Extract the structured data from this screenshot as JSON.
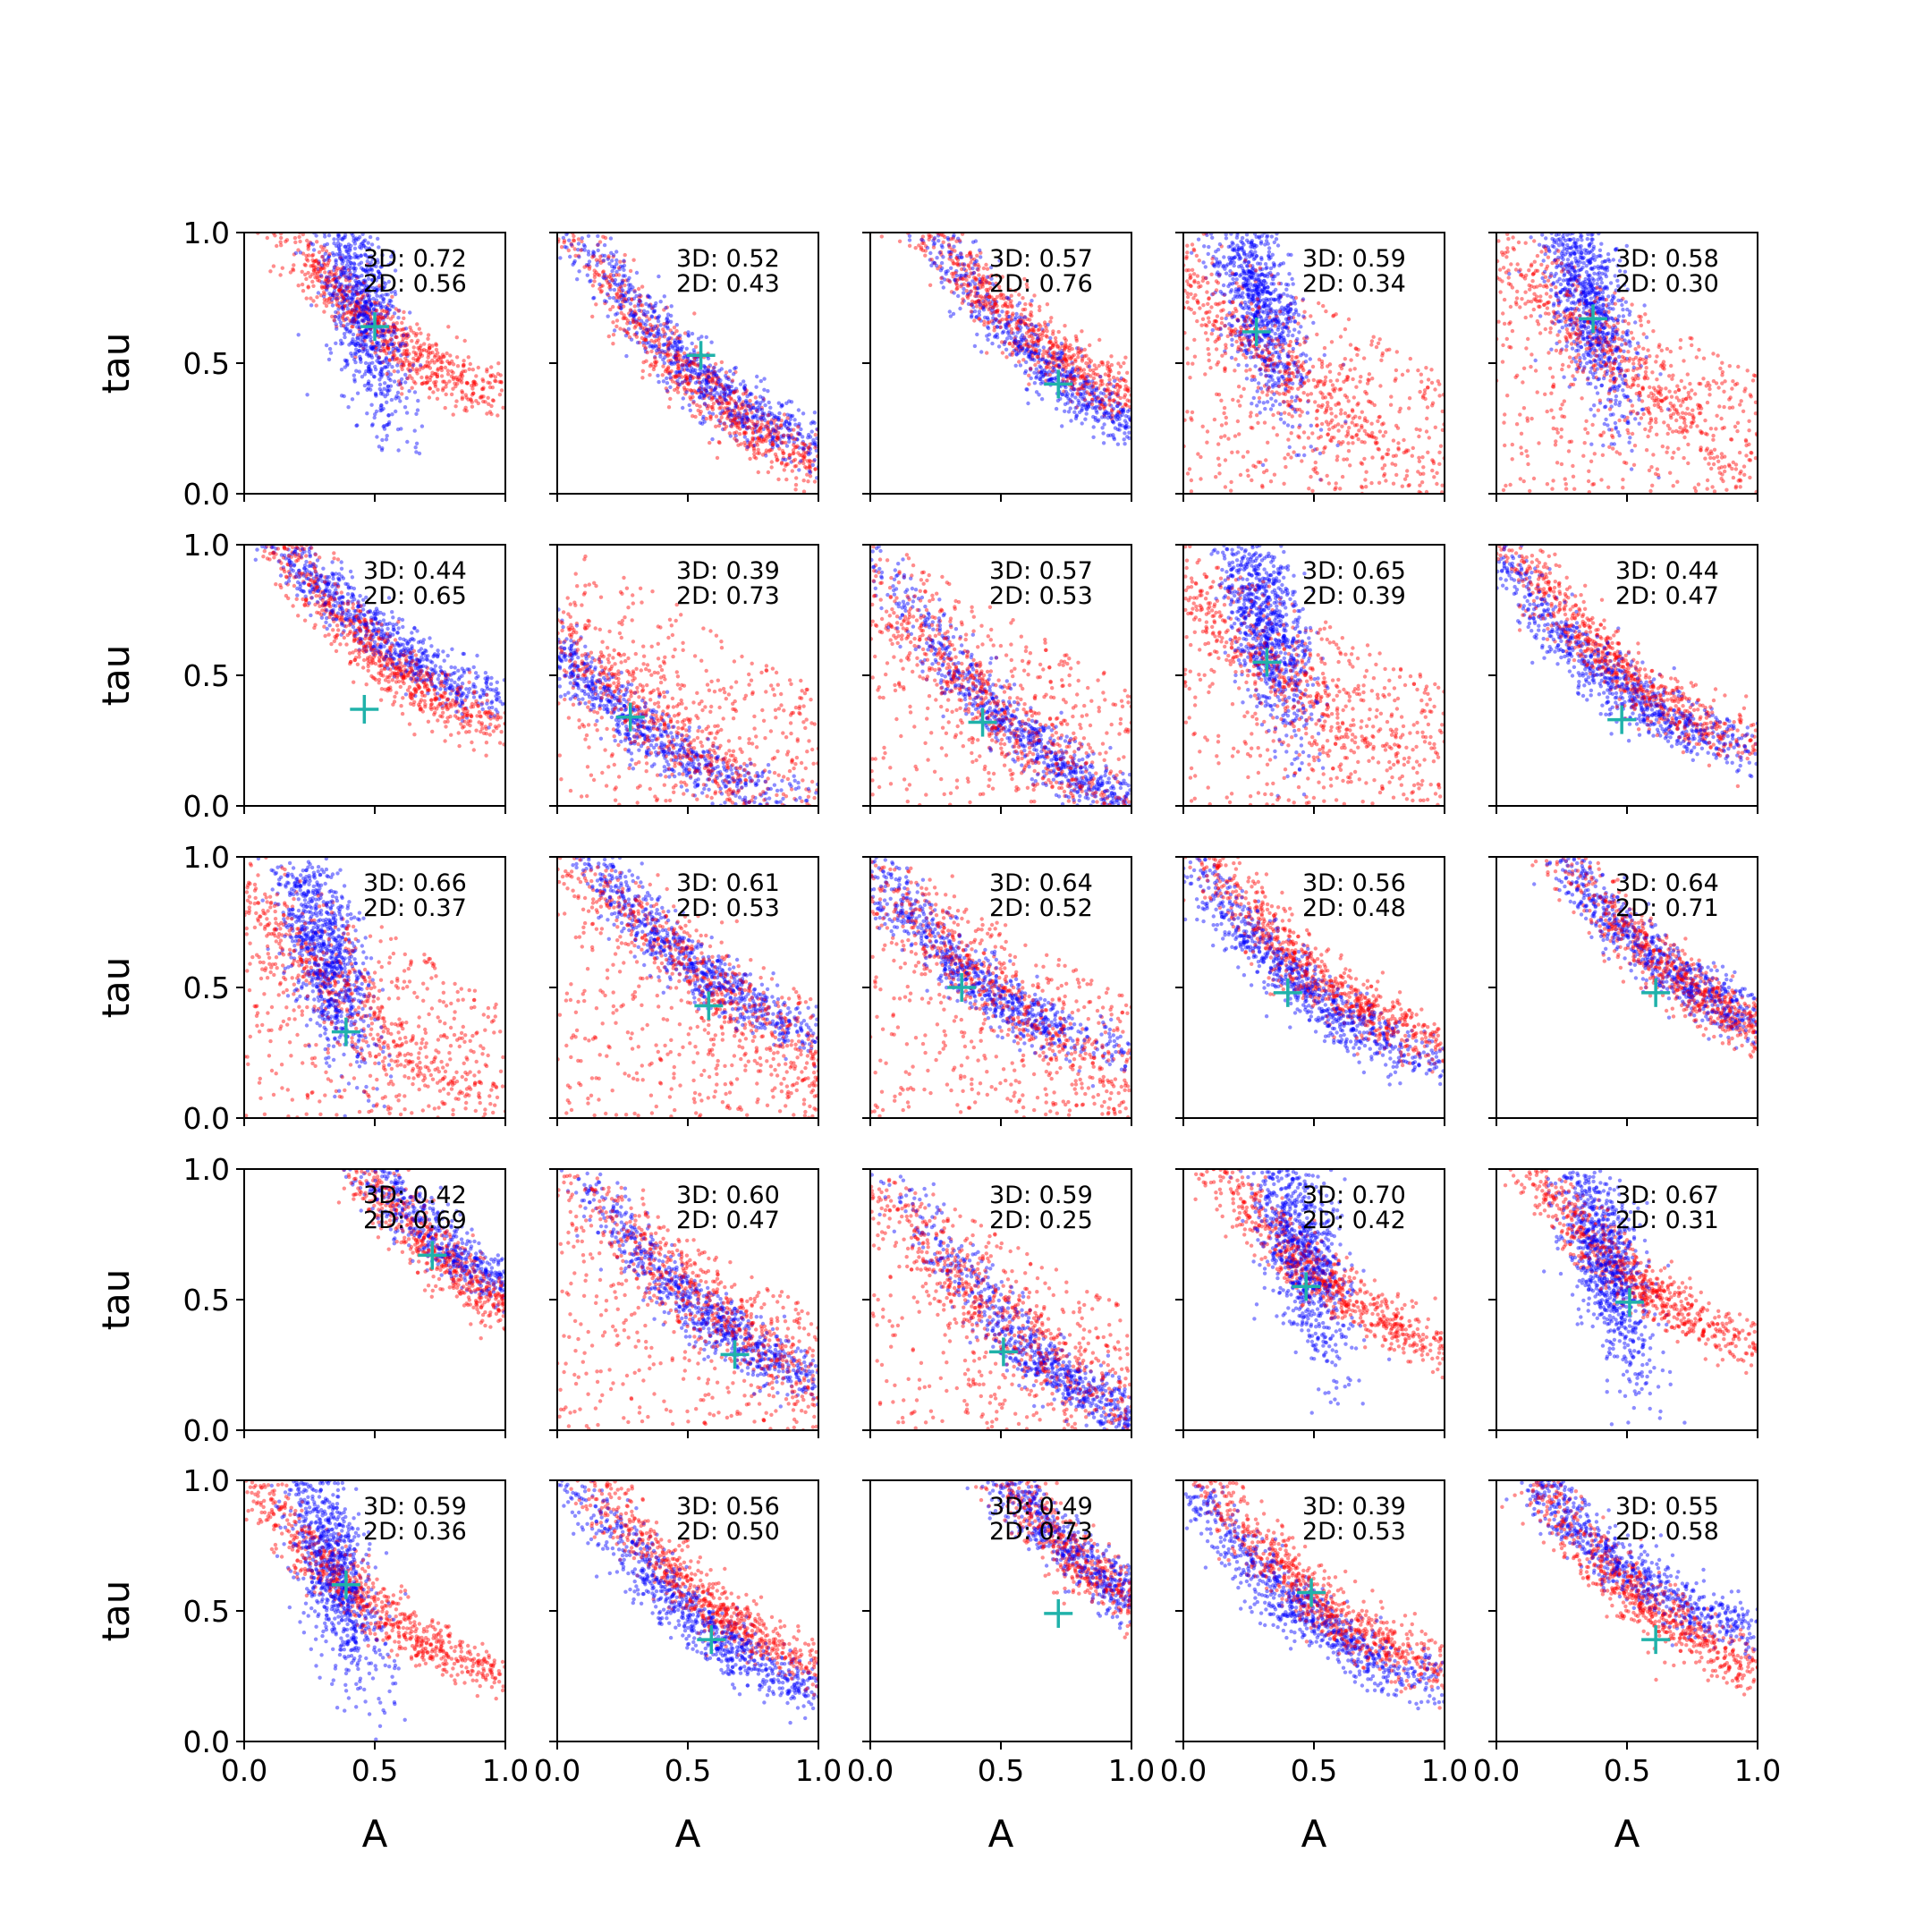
{
  "chart_data": {
    "type": "scatter",
    "layout": {
      "rows": 5,
      "cols": 5
    },
    "xlabel": "A",
    "ylabel": "tau",
    "xlim": [
      0,
      1
    ],
    "ylim": [
      0,
      1
    ],
    "xticks": [
      "0.0",
      "0.5",
      "1.0"
    ],
    "yticks": [
      "0.0",
      "0.5",
      "1.0"
    ],
    "colors": {
      "series_a": "#0000ff",
      "series_b": "#ff0000",
      "marker": "#20b2aa"
    },
    "panels": [
      {
        "label_3d": "3D: 0.72",
        "label_2d": "2D: 0.56",
        "marker": [
          0.5,
          0.64
        ],
        "blue": {
          "center": [
            0.45,
            0.72
          ],
          "shape": "vertical"
        },
        "red": {
          "center": [
            0.5,
            0.65
          ],
          "shape": "curve"
        }
      },
      {
        "label_3d": "3D: 0.52",
        "label_2d": "2D: 0.43",
        "marker": [
          0.55,
          0.53
        ],
        "blue": {
          "center": [
            0.55,
            0.45
          ],
          "shape": "curve"
        },
        "red": {
          "center": [
            0.62,
            0.35
          ],
          "shape": "curve"
        }
      },
      {
        "label_3d": "3D: 0.57",
        "label_2d": "2D: 0.76",
        "marker": [
          0.72,
          0.42
        ],
        "blue": {
          "center": [
            0.72,
            0.45
          ],
          "shape": "curve"
        },
        "red": {
          "center": [
            0.62,
            0.6
          ],
          "shape": "curve"
        }
      },
      {
        "label_3d": "3D: 0.59",
        "label_2d": "2D: 0.34",
        "marker": [
          0.28,
          0.62
        ],
        "blue": {
          "center": [
            0.28,
            0.75
          ],
          "shape": "vertical"
        },
        "red": {
          "center": [
            0.3,
            0.55
          ],
          "shape": "diffuse"
        }
      },
      {
        "label_3d": "3D: 0.58",
        "label_2d": "2D: 0.30",
        "marker": [
          0.37,
          0.67
        ],
        "blue": {
          "center": [
            0.35,
            0.75
          ],
          "shape": "vertical"
        },
        "red": {
          "center": [
            0.38,
            0.6
          ],
          "shape": "diffuse"
        }
      },
      {
        "label_3d": "3D: 0.44",
        "label_2d": "2D: 0.65",
        "marker": [
          0.46,
          0.37
        ],
        "blue": {
          "center": [
            0.45,
            0.7
          ],
          "shape": "curve"
        },
        "red": {
          "center": [
            0.55,
            0.55
          ],
          "shape": "curve"
        }
      },
      {
        "label_3d": "3D: 0.39",
        "label_2d": "2D: 0.73",
        "marker": [
          0.28,
          0.34
        ],
        "blue": {
          "center": [
            0.25,
            0.35
          ],
          "shape": "curve"
        },
        "red": {
          "center": [
            0.3,
            0.4
          ],
          "shape": "diffuse"
        }
      },
      {
        "label_3d": "3D: 0.57",
        "label_2d": "2D: 0.53",
        "marker": [
          0.43,
          0.32
        ],
        "blue": {
          "center": [
            0.6,
            0.25
          ],
          "shape": "curve"
        },
        "red": {
          "center": [
            0.4,
            0.45
          ],
          "shape": "diffuse"
        }
      },
      {
        "label_3d": "3D: 0.65",
        "label_2d": "2D: 0.39",
        "marker": [
          0.32,
          0.55
        ],
        "blue": {
          "center": [
            0.32,
            0.7
          ],
          "shape": "vertical"
        },
        "red": {
          "center": [
            0.38,
            0.5
          ],
          "shape": "diffuse"
        }
      },
      {
        "label_3d": "3D: 0.44",
        "label_2d": "2D: 0.47",
        "marker": [
          0.48,
          0.33
        ],
        "blue": {
          "center": [
            0.42,
            0.5
          ],
          "shape": "curve"
        },
        "red": {
          "center": [
            0.5,
            0.5
          ],
          "shape": "curve"
        }
      },
      {
        "label_3d": "3D: 0.66",
        "label_2d": "2D: 0.37",
        "marker": [
          0.39,
          0.33
        ],
        "blue": {
          "center": [
            0.3,
            0.65
          ],
          "shape": "vertical"
        },
        "red": {
          "center": [
            0.35,
            0.5
          ],
          "shape": "diffuse"
        }
      },
      {
        "label_3d": "3D: 0.61",
        "label_2d": "2D: 0.53",
        "marker": [
          0.58,
          0.43
        ],
        "blue": {
          "center": [
            0.5,
            0.6
          ],
          "shape": "curve"
        },
        "red": {
          "center": [
            0.55,
            0.55
          ],
          "shape": "diffuse"
        }
      },
      {
        "label_3d": "3D: 0.64",
        "label_2d": "2D: 0.52",
        "marker": [
          0.35,
          0.5
        ],
        "blue": {
          "center": [
            0.38,
            0.55
          ],
          "shape": "curve"
        },
        "red": {
          "center": [
            0.42,
            0.55
          ],
          "shape": "diffuse"
        }
      },
      {
        "label_3d": "3D: 0.56",
        "label_2d": "2D: 0.48",
        "marker": [
          0.4,
          0.48
        ],
        "blue": {
          "center": [
            0.45,
            0.5
          ],
          "shape": "curve"
        },
        "red": {
          "center": [
            0.5,
            0.55
          ],
          "shape": "curve"
        }
      },
      {
        "label_3d": "3D: 0.64",
        "label_2d": "2D: 0.71",
        "marker": [
          0.61,
          0.48
        ],
        "blue": {
          "center": [
            0.62,
            0.6
          ],
          "shape": "curve"
        },
        "red": {
          "center": [
            0.68,
            0.55
          ],
          "shape": "curve"
        }
      },
      {
        "label_3d": "3D: 0.42",
        "label_2d": "2D: 0.69",
        "marker": [
          0.72,
          0.67
        ],
        "blue": {
          "center": [
            0.75,
            0.72
          ],
          "shape": "curve"
        },
        "red": {
          "center": [
            0.82,
            0.6
          ],
          "shape": "curve"
        }
      },
      {
        "label_3d": "3D: 0.60",
        "label_2d": "2D: 0.47",
        "marker": [
          0.68,
          0.29
        ],
        "blue": {
          "center": [
            0.55,
            0.45
          ],
          "shape": "curve"
        },
        "red": {
          "center": [
            0.55,
            0.5
          ],
          "shape": "diffuse"
        }
      },
      {
        "label_3d": "3D: 0.59",
        "label_2d": "2D: 0.25",
        "marker": [
          0.51,
          0.3
        ],
        "blue": {
          "center": [
            0.68,
            0.25
          ],
          "shape": "curve"
        },
        "red": {
          "center": [
            0.45,
            0.5
          ],
          "shape": "diffuse"
        }
      },
      {
        "label_3d": "3D: 0.70",
        "label_2d": "2D: 0.42",
        "marker": [
          0.47,
          0.55
        ],
        "blue": {
          "center": [
            0.45,
            0.7
          ],
          "shape": "vertical"
        },
        "red": {
          "center": [
            0.5,
            0.6
          ],
          "shape": "curve"
        }
      },
      {
        "label_3d": "3D: 0.67",
        "label_2d": "2D: 0.31",
        "marker": [
          0.51,
          0.49
        ],
        "blue": {
          "center": [
            0.42,
            0.65
          ],
          "shape": "vertical"
        },
        "red": {
          "center": [
            0.5,
            0.6
          ],
          "shape": "curve"
        }
      },
      {
        "label_3d": "3D: 0.59",
        "label_2d": "2D: 0.36",
        "marker": [
          0.39,
          0.6
        ],
        "blue": {
          "center": [
            0.35,
            0.65
          ],
          "shape": "vertical"
        },
        "red": {
          "center": [
            0.45,
            0.55
          ],
          "shape": "curve"
        }
      },
      {
        "label_3d": "3D: 0.56",
        "label_2d": "2D: 0.50",
        "marker": [
          0.59,
          0.39
        ],
        "blue": {
          "center": [
            0.55,
            0.45
          ],
          "shape": "curve"
        },
        "red": {
          "center": [
            0.55,
            0.55
          ],
          "shape": "curve"
        }
      },
      {
        "label_3d": "3D: 0.49",
        "label_2d": "2D: 0.73",
        "marker": [
          0.72,
          0.49
        ],
        "blue": {
          "center": [
            0.8,
            0.7
          ],
          "shape": "curve"
        },
        "red": {
          "center": [
            0.85,
            0.65
          ],
          "shape": "curve"
        }
      },
      {
        "label_3d": "3D: 0.39",
        "label_2d": "2D: 0.53",
        "marker": [
          0.49,
          0.57
        ],
        "blue": {
          "center": [
            0.45,
            0.5
          ],
          "shape": "curve"
        },
        "red": {
          "center": [
            0.5,
            0.55
          ],
          "shape": "curve"
        }
      },
      {
        "label_3d": "3D: 0.55",
        "label_2d": "2D: 0.58",
        "marker": [
          0.61,
          0.39
        ],
        "blue": {
          "center": [
            0.45,
            0.7
          ],
          "shape": "curve"
        },
        "red": {
          "center": [
            0.55,
            0.55
          ],
          "shape": "curve"
        }
      }
    ]
  }
}
